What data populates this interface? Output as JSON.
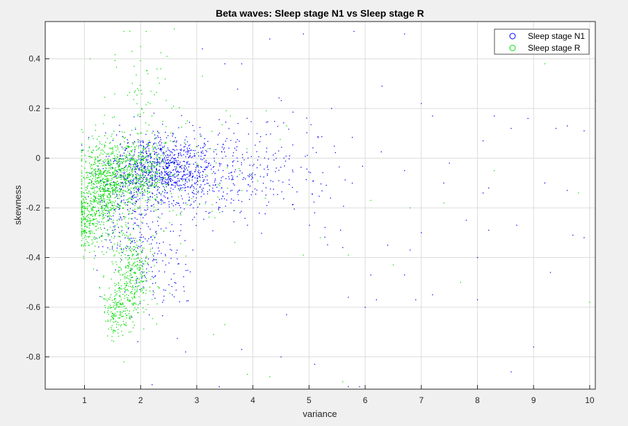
{
  "chart_data": {
    "type": "scatter",
    "title": "Beta waves: Sleep stage N1 vs Sleep stage R",
    "xlabel": "variance",
    "ylabel": "skewness",
    "xlim": [
      0.3,
      10.1
    ],
    "ylim": [
      -0.93,
      0.55
    ],
    "xticks": [
      1,
      2,
      3,
      4,
      5,
      6,
      7,
      8,
      9,
      10
    ],
    "yticks": [
      -0.8,
      -0.6,
      -0.4,
      -0.2,
      0,
      0.2,
      0.4
    ],
    "ytick_labels": [
      "-0.8",
      "-0.6",
      "-0.4",
      "-0.2",
      "0",
      "0.2",
      "0.4"
    ],
    "grid": true,
    "legend_position": "top-right",
    "series": [
      {
        "name": "Sleep stage N1",
        "color": "#0000ff",
        "clusters": [
          {
            "n": 900,
            "cx": 2.4,
            "cy": -0.05,
            "sx": 0.45,
            "sy": 0.07
          },
          {
            "n": 250,
            "cx": 1.8,
            "cy": -0.2,
            "sx": 0.3,
            "sy": 0.13
          },
          {
            "n": 200,
            "cx": 3.4,
            "cy": -0.05,
            "sx": 0.55,
            "sy": 0.09
          },
          {
            "n": 140,
            "cx": 4.3,
            "cy": -0.05,
            "sx": 0.8,
            "sy": 0.14
          },
          {
            "n": 120,
            "cx": 2.3,
            "cy": -0.42,
            "sx": 0.35,
            "sy": 0.12
          }
        ],
        "scatter_points": [
          [
            5.4,
            0.2
          ],
          [
            4.9,
            0.5
          ],
          [
            6.7,
            0.5
          ],
          [
            5.8,
            0.51
          ],
          [
            3.5,
            0.38
          ],
          [
            4.3,
            0.48
          ],
          [
            6.3,
            0.29
          ],
          [
            7.0,
            0.22
          ],
          [
            7.2,
            0.17
          ],
          [
            8.3,
            0.17
          ],
          [
            8.9,
            0.16
          ],
          [
            9.4,
            0.12
          ],
          [
            9.6,
            0.13
          ],
          [
            8.1,
            0.07
          ],
          [
            6.7,
            -0.05
          ],
          [
            7.5,
            -0.02
          ],
          [
            8.6,
            0.12
          ],
          [
            9.2,
            -0.1
          ],
          [
            8.2,
            -0.12
          ],
          [
            7.8,
            -0.25
          ],
          [
            8.7,
            -0.27
          ],
          [
            8.2,
            -0.29
          ],
          [
            7.0,
            -0.3
          ],
          [
            6.8,
            -0.37
          ],
          [
            8.0,
            -0.4
          ],
          [
            9.6,
            -0.13
          ],
          [
            9.7,
            -0.31
          ],
          [
            9.9,
            -0.32
          ],
          [
            6.1,
            -0.47
          ],
          [
            6.7,
            -0.47
          ],
          [
            5.7,
            -0.56
          ],
          [
            6.2,
            -0.57
          ],
          [
            6.9,
            -0.57
          ],
          [
            7.2,
            -0.55
          ],
          [
            8.0,
            -0.57
          ],
          [
            9.0,
            -0.76
          ],
          [
            8.6,
            -0.86
          ],
          [
            5.7,
            -0.92
          ],
          [
            5.9,
            -0.92
          ],
          [
            5.1,
            -0.83
          ],
          [
            4.5,
            -0.8
          ],
          [
            3.8,
            -0.77
          ],
          [
            3.4,
            -0.92
          ],
          [
            9.3,
            -0.46
          ],
          [
            8.1,
            -0.14
          ],
          [
            5.6,
            -0.36
          ],
          [
            6.0,
            -0.6
          ],
          [
            4.6,
            -0.63
          ],
          [
            2.8,
            -0.78
          ],
          [
            7.4,
            -0.1
          ],
          [
            5.1,
            -0.22
          ],
          [
            6.4,
            -0.35
          ],
          [
            9.9,
            0.11
          ],
          [
            3.8,
            0.38
          ],
          [
            3.1,
            0.44
          ]
        ]
      },
      {
        "name": "Sleep stage R",
        "color": "#00dd00",
        "clusters": [
          {
            "n": 700,
            "cx": 1.35,
            "cy": -0.12,
            "sx": 0.22,
            "sy": 0.1
          },
          {
            "n": 500,
            "cx": 1.9,
            "cy": -0.05,
            "sx": 0.3,
            "sy": 0.06
          },
          {
            "n": 350,
            "cx": 1.85,
            "cy": -0.48,
            "sx": 0.17,
            "sy": 0.1
          },
          {
            "n": 200,
            "cx": 1.05,
            "cy": -0.25,
            "sx": 0.1,
            "sy": 0.07
          },
          {
            "n": 150,
            "cx": 1.55,
            "cy": -0.6,
            "sx": 0.12,
            "sy": 0.06
          },
          {
            "n": 100,
            "cx": 2.8,
            "cy": -0.1,
            "sx": 0.6,
            "sy": 0.12
          },
          {
            "n": 60,
            "cx": 2.0,
            "cy": 0.25,
            "sx": 0.3,
            "sy": 0.12
          }
        ],
        "scatter_points": [
          [
            1.7,
            0.51
          ],
          [
            2.1,
            0.51
          ],
          [
            2.6,
            0.52
          ],
          [
            1.1,
            0.4
          ],
          [
            2.0,
            0.45
          ],
          [
            3.1,
            0.33
          ],
          [
            10.1,
            0.23
          ],
          [
            9.2,
            0.38
          ],
          [
            9.8,
            -0.14
          ],
          [
            10.0,
            -0.58
          ],
          [
            7.7,
            -0.5
          ],
          [
            6.5,
            -0.43
          ],
          [
            5.2,
            -0.32
          ],
          [
            4.0,
            0.55
          ],
          [
            3.9,
            -0.87
          ],
          [
            4.9,
            -0.39
          ],
          [
            6.1,
            -0.17
          ],
          [
            7.4,
            -0.18
          ],
          [
            5.7,
            -0.39
          ],
          [
            3.5,
            -0.67
          ],
          [
            1.7,
            -0.82
          ],
          [
            3.3,
            -0.71
          ],
          [
            4.3,
            -0.88
          ],
          [
            5.6,
            -0.9
          ],
          [
            6.8,
            -0.2
          ],
          [
            8.3,
            -0.05
          ],
          [
            3.6,
            0.17
          ],
          [
            4.6,
            0.13
          ],
          [
            2.2,
            0.17
          ]
        ]
      }
    ]
  }
}
